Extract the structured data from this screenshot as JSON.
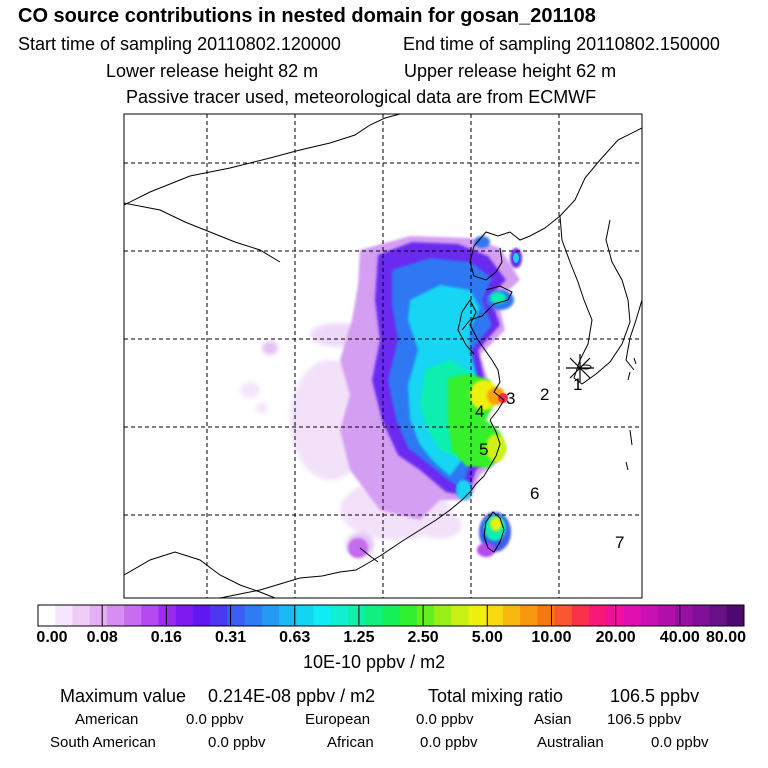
{
  "header": {
    "title": "CO  source contributions in nested domain for gosan_201108",
    "start_label": "Start time of sampling 20110802.120000",
    "end_label": "End time of sampling 20110802.150000",
    "lower_label": "Lower release height   82 m",
    "upper_label": "Upper release height   62 m",
    "tracer_note": "Passive tracer used, meteorological data are from ECMWF"
  },
  "map": {
    "region_labels": [
      "1",
      "2",
      "3",
      "4",
      "5",
      "6",
      "7"
    ]
  },
  "colorbar": {
    "ticks": [
      "0.00",
      "0.08",
      "0.16",
      "0.31",
      "0.63",
      "1.25",
      "2.50",
      "5.00",
      "10.00",
      "20.00",
      "40.00",
      "80.00"
    ],
    "units": "10E-10 ppbv / m2",
    "colors": [
      "#ffffff",
      "#f7e6fb",
      "#efcdf7",
      "#e4b0f3",
      "#d88ef0",
      "#c86cf0",
      "#b44af0",
      "#9a2cf0",
      "#7f1af0",
      "#5f18f0",
      "#4a38f0",
      "#3c5cf3",
      "#2e7cf3",
      "#249af3",
      "#1cb8f3",
      "#14d4f3",
      "#10ecf3",
      "#10f0d0",
      "#10f0a8",
      "#10f080",
      "#14f058",
      "#30f030",
      "#64f020",
      "#98f018",
      "#c8f014",
      "#f0f010",
      "#f8d810",
      "#f8b810",
      "#f89810",
      "#f87810",
      "#f85830",
      "#f83048",
      "#f81878",
      "#f010a0",
      "#e010b0",
      "#c810b0",
      "#b010a8",
      "#9810a0",
      "#801098",
      "#681088",
      "#500870"
    ]
  },
  "stats": {
    "max_label": "Maximum value",
    "max_value": "0.214E-08 ppbv / m2",
    "total_label": "Total mixing ratio",
    "total_value": "106.5 ppbv",
    "rows": [
      [
        {
          "name": "American",
          "value": "0.0 ppbv"
        },
        {
          "name": "European",
          "value": "0.0 ppbv"
        },
        {
          "name": "Asian",
          "value": "106.5 ppbv"
        }
      ],
      [
        {
          "name": "South American",
          "value": "0.0 ppbv"
        },
        {
          "name": "African",
          "value": "0.0 ppbv"
        },
        {
          "name": "Australian",
          "value": "0.0 ppbv"
        }
      ]
    ]
  }
}
